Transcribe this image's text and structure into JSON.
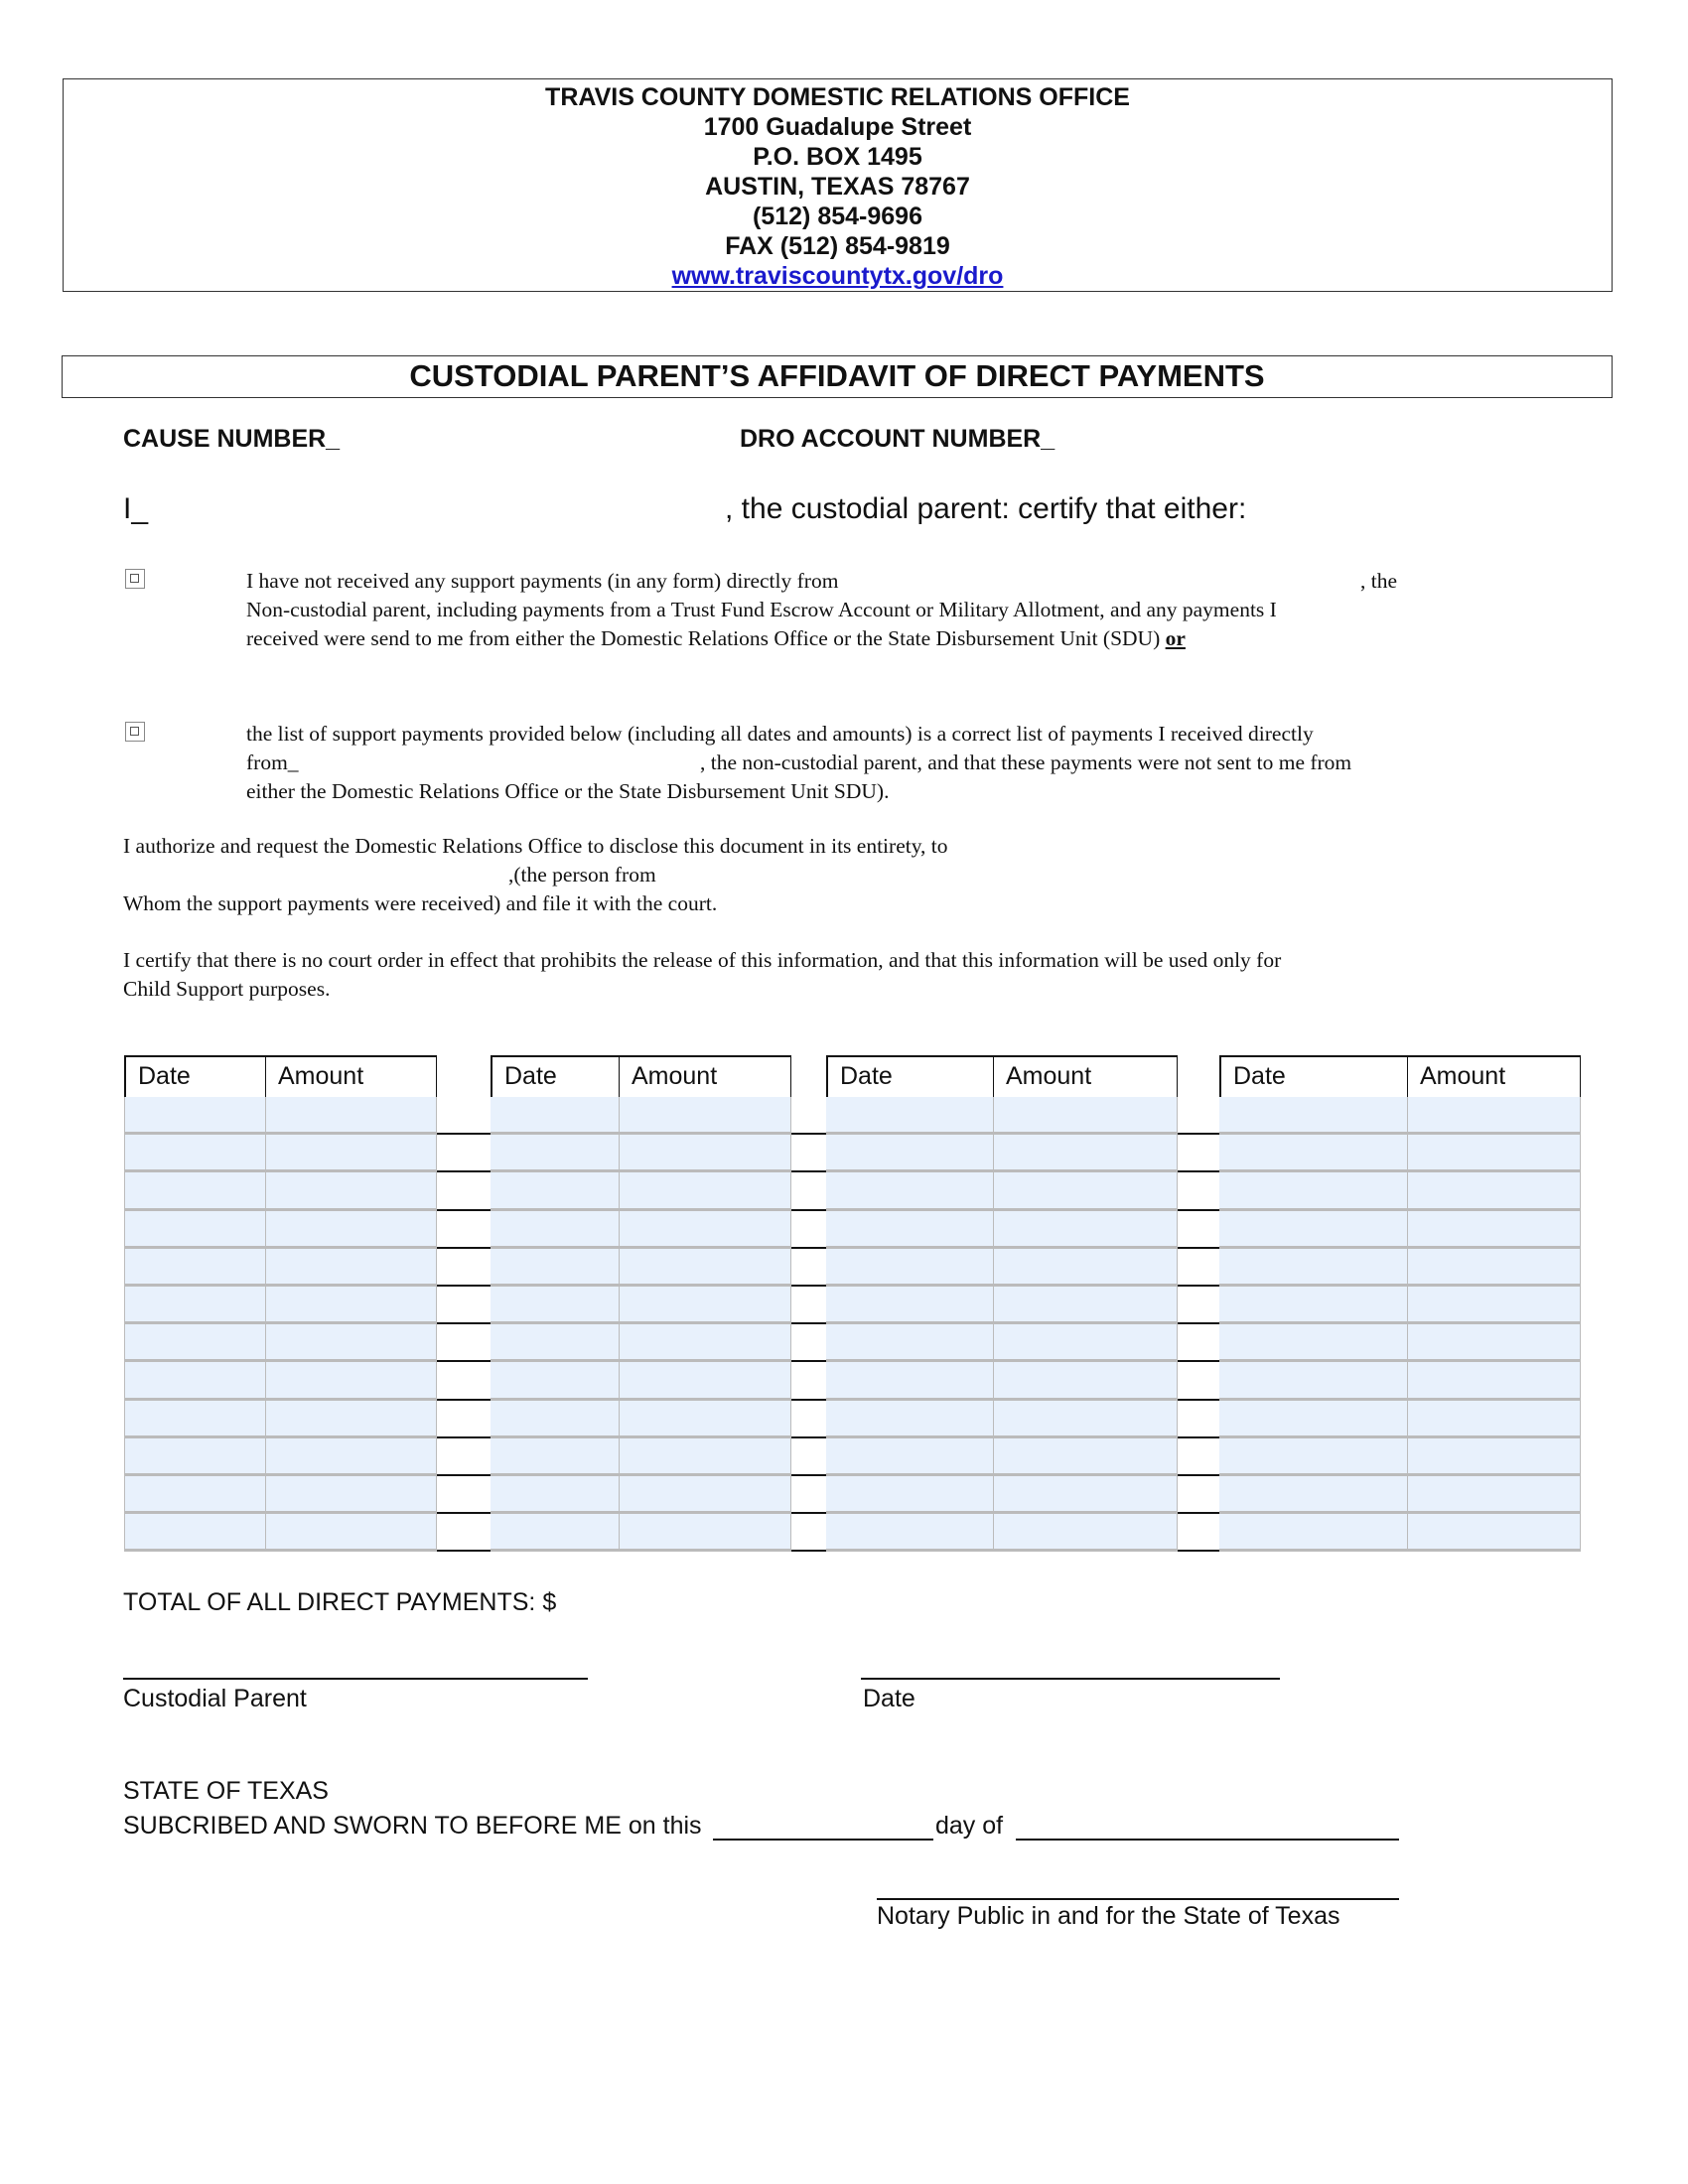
{
  "header": {
    "office": "TRAVIS COUNTY DOMESTIC RELATIONS OFFICE",
    "street": "1700 Guadalupe Street",
    "po_box": "P.O. BOX 1495",
    "city": "AUSTIN, TEXAS 78767",
    "phone": "(512) 854-9696",
    "fax": "FAX  (512) 854-9819",
    "website": "www.traviscountytx.gov/dro"
  },
  "title": "CUSTODIAL PARENT’S AFFIDAVIT OF DIRECT PAYMENTS",
  "fields": {
    "cause_number": "CAUSE NUMBER_",
    "dro_account": "DRO ACCOUNT  NUMBER_",
    "i_label": "I_",
    "custodial_certify": ", the custodial parent: certify that either:"
  },
  "option1": {
    "line1": "I have not received any support payments (in any form) directly from",
    "line1_end": ", the",
    "line2": "Non-custodial parent, including payments from a Trust Fund Escrow Account or Military Allotment, and any payments I",
    "line3": "received were send to me from either the Domestic Relations Office or the State Disbursement Unit (SDU)",
    "or": "or",
    "checked": false
  },
  "option2": {
    "line1": "the list of support payments provided below (including all dates and amounts) is a correct list of payments I received directly",
    "line2a": "from_",
    "line2b": ", the non-custodial parent, and that these payments were not sent to me from",
    "line3": "either the Domestic Relations Office or the State Disbursement Unit SDU).",
    "checked": false
  },
  "authorize": {
    "line1": "I authorize and request the Domestic Relations Office to disclose this document in its entirety, to",
    "line2": ",(the person from",
    "line3": "Whom the support payments were received) and file it with the court."
  },
  "certify": {
    "line1": "I certify that there is no court order in effect that prohibits the release of this information, and that this information will be used only for",
    "line2": "Child Support purposes."
  },
  "table": {
    "headers": [
      "Date",
      "Amount",
      "Date",
      "Amount",
      "Date",
      "Amount",
      "Date",
      "Amount"
    ],
    "rows": 12
  },
  "total_label": "TOTAL OF ALL DIRECT PAYMENTS: $",
  "signature": {
    "custodial_parent": "Custodial Parent",
    "date": "Date"
  },
  "notary": {
    "state": "STATE OF TEXAS",
    "sworn": "SUBCRIBED AND SWORN TO BEFORE ME on this",
    "day_of": "day of",
    "notary_label": "Notary Public in and for the State of Texas"
  }
}
